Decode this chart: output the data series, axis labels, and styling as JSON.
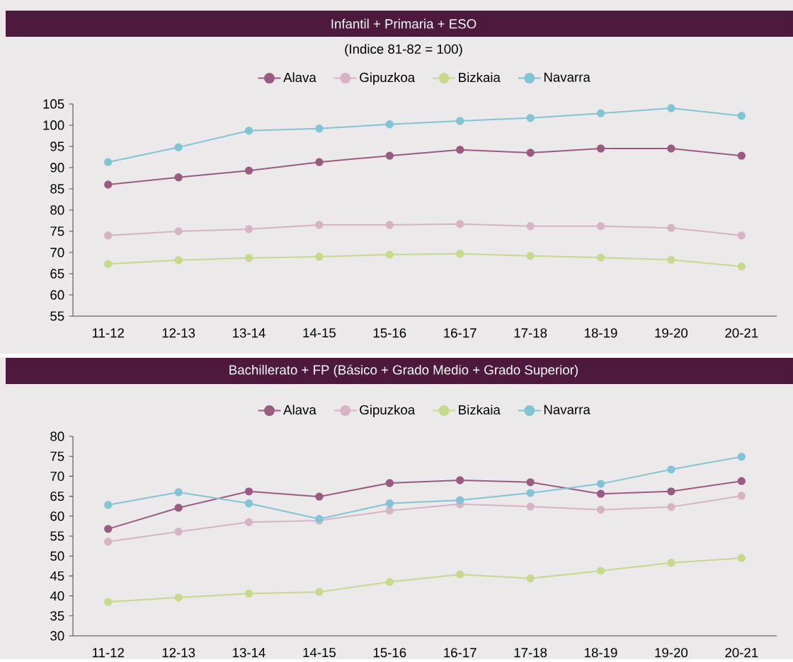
{
  "chart_data": [
    {
      "type": "line",
      "title": "Infantil + Primaria + ESO",
      "subtitle": "(Indice 81-82 = 100)",
      "categories": [
        "11-12",
        "12-13",
        "13-14",
        "14-15",
        "15-16",
        "16-17",
        "17-18",
        "18-19",
        "19-20",
        "20-21"
      ],
      "series": [
        {
          "name": "Alava",
          "color": "#9b5a80",
          "values": [
            86,
            87.7,
            89.3,
            91.3,
            92.8,
            94.2,
            93.5,
            94.5,
            94.5,
            92.8
          ]
        },
        {
          "name": "Gipuzkoa",
          "color": "#d6b4c6",
          "values": [
            74,
            75,
            75.5,
            76.5,
            76.5,
            76.7,
            76.2,
            76.2,
            75.8,
            74
          ]
        },
        {
          "name": "Bizkaia",
          "color": "#c6da8a",
          "values": [
            67.3,
            68.2,
            68.7,
            69,
            69.5,
            69.7,
            69.2,
            68.8,
            68.3,
            66.7
          ]
        },
        {
          "name": "Navarra",
          "color": "#80c5d5",
          "values": [
            91.3,
            94.8,
            98.7,
            99.2,
            100.2,
            101,
            101.7,
            102.8,
            104,
            102.2
          ]
        }
      ],
      "ylim": [
        55,
        105
      ],
      "yticks": [
        55,
        60,
        65,
        70,
        75,
        80,
        85,
        90,
        95,
        100,
        105
      ],
      "legend": "top",
      "marker": "circle",
      "line_style": "solid"
    },
    {
      "type": "line",
      "title": "Bachillerato + FP (Básico + Grado Medio + Grado Superior)",
      "categories": [
        "11-12",
        "12-13",
        "13-14",
        "14-15",
        "15-16",
        "16-17",
        "17-18",
        "18-19",
        "19-20",
        "20-21"
      ],
      "series": [
        {
          "name": "Alava",
          "color": "#9b5a80",
          "values": [
            56.8,
            62.1,
            66.2,
            64.9,
            68.3,
            69,
            68.5,
            65.6,
            66.2,
            68.8
          ]
        },
        {
          "name": "Gipuzkoa",
          "color": "#d6b4c6",
          "values": [
            53.6,
            56.1,
            58.5,
            58.9,
            61.4,
            63,
            62.4,
            61.6,
            62.3,
            65.1
          ]
        },
        {
          "name": "Bizkaia",
          "color": "#c6da8a",
          "values": [
            38.5,
            39.6,
            40.6,
            41,
            43.5,
            45.4,
            44.4,
            46.3,
            48.3,
            49.5
          ]
        },
        {
          "name": "Navarra",
          "color": "#80c5d5",
          "values": [
            62.8,
            66,
            63.2,
            59.3,
            63.2,
            64,
            65.8,
            68.1,
            71.7,
            74.9
          ]
        }
      ],
      "ylim": [
        30,
        80
      ],
      "yticks": [
        30,
        35,
        40,
        45,
        50,
        55,
        60,
        65,
        70,
        75,
        80
      ],
      "legend": "top",
      "marker": "circle",
      "line_style": "solid"
    }
  ]
}
